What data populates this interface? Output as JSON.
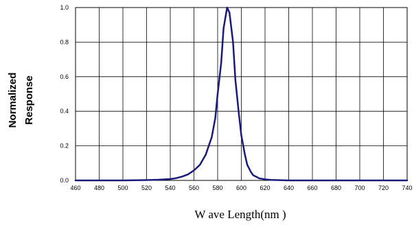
{
  "chart_data": {
    "type": "line",
    "title": "",
    "xlabel": "W ave Length(nm )",
    "ylabel_lines": [
      "Normalized",
      "Response"
    ],
    "xlim": [
      460,
      740
    ],
    "ylim": [
      0,
      1.0
    ],
    "x_ticks": [
      460,
      480,
      500,
      520,
      540,
      560,
      580,
      600,
      620,
      640,
      660,
      680,
      700,
      720,
      740
    ],
    "x_tick_labels": [
      "460",
      "480",
      "500",
      "520",
      "540",
      "560",
      "580",
      "600",
      "620",
      "640",
      "660",
      "680",
      "700",
      "720",
      "740"
    ],
    "y_ticks": [
      0,
      0.2,
      0.4,
      0.6,
      0.8,
      1.0
    ],
    "y_tick_labels": [
      "0.0",
      "0.2",
      "0.4",
      "0.6",
      "0.8",
      "1.0"
    ],
    "grid": true,
    "line_color": "#1a1a7a",
    "series": [
      {
        "x": [
          460,
          500,
          520,
          530,
          540,
          545,
          550,
          555,
          560,
          565,
          570,
          575,
          578,
          580,
          583,
          585,
          588,
          590,
          593,
          595,
          598,
          600,
          603,
          605,
          608,
          610,
          613,
          615,
          620,
          625,
          630,
          640,
          660,
          700,
          740
        ],
        "y": [
          0,
          0,
          0.002,
          0.004,
          0.008,
          0.013,
          0.022,
          0.035,
          0.058,
          0.09,
          0.15,
          0.25,
          0.36,
          0.5,
          0.68,
          0.88,
          1.0,
          0.97,
          0.8,
          0.58,
          0.38,
          0.26,
          0.15,
          0.09,
          0.05,
          0.03,
          0.02,
          0.012,
          0.006,
          0.003,
          0.002,
          0,
          0,
          0,
          0
        ]
      }
    ]
  }
}
